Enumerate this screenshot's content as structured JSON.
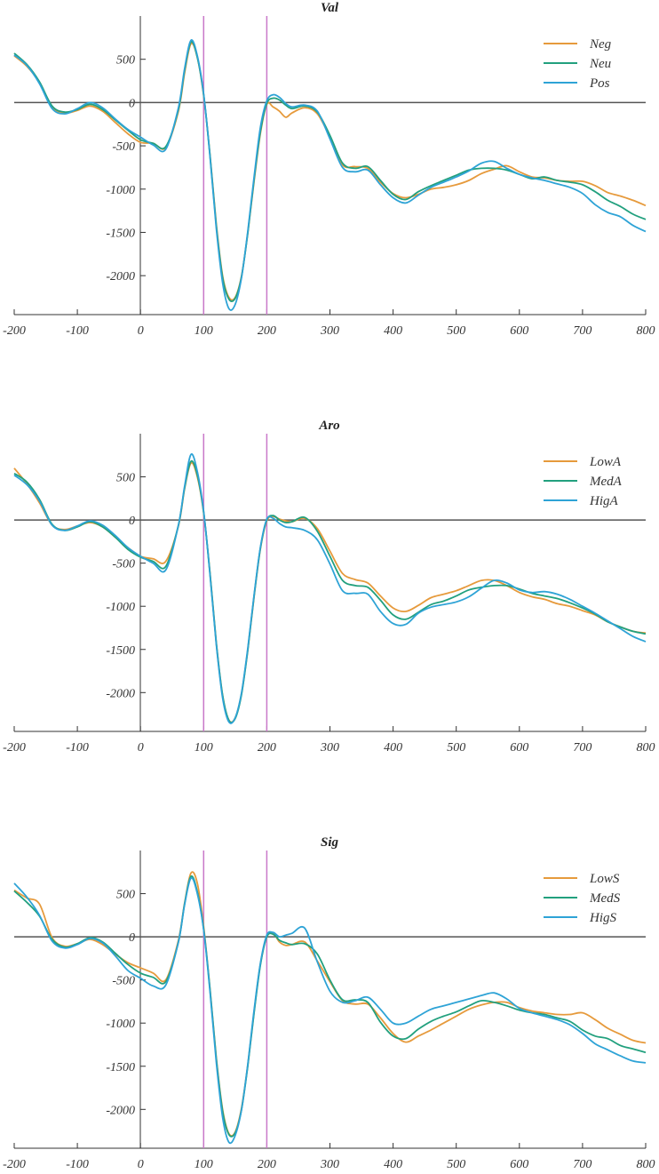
{
  "colors": {
    "orange": "#E69A3C",
    "green": "#22A07E",
    "blue": "#2EA3D6",
    "marker": "#C978C9",
    "axis": "#333333",
    "zero": "#555555"
  },
  "chart_data": [
    {
      "type": "line",
      "title": "Val",
      "xlabel": "",
      "ylabel": "",
      "xlim": [
        -200,
        800
      ],
      "ylim": [
        -2450,
        1000
      ],
      "xticks": [
        -200,
        -100,
        0,
        100,
        200,
        300,
        400,
        500,
        600,
        700,
        800
      ],
      "yticks": [
        500,
        0,
        -500,
        -1000,
        -1500,
        -2000
      ],
      "vlines": [
        100,
        200
      ],
      "hline": 0,
      "grid": false,
      "legend_position": "top-right",
      "x": [
        -200,
        -180,
        -160,
        -140,
        -120,
        -100,
        -80,
        -60,
        -40,
        -20,
        0,
        20,
        40,
        60,
        70,
        80,
        90,
        100,
        110,
        120,
        130,
        140,
        150,
        160,
        170,
        180,
        190,
        200,
        210,
        220,
        230,
        240,
        260,
        280,
        300,
        320,
        340,
        360,
        380,
        400,
        420,
        440,
        460,
        480,
        500,
        520,
        540,
        560,
        580,
        600,
        620,
        640,
        660,
        680,
        700,
        720,
        740,
        760,
        780,
        800
      ],
      "series": [
        {
          "name": "Neg",
          "color": "#E69A3C",
          "values": [
            540,
            420,
            230,
            -50,
            -120,
            -90,
            -40,
            -100,
            -230,
            -360,
            -460,
            -470,
            -520,
            -100,
            350,
            680,
            520,
            80,
            -600,
            -1400,
            -2000,
            -2250,
            -2250,
            -2000,
            -1500,
            -900,
            -350,
            -20,
            -50,
            -100,
            -170,
            -120,
            -60,
            -130,
            -400,
            -720,
            -740,
            -760,
            -920,
            -1050,
            -1100,
            -1060,
            -1000,
            -980,
            -950,
            -900,
            -820,
            -770,
            -730,
            -800,
            -860,
            -870,
            -900,
            -910,
            -910,
            -960,
            -1040,
            -1080,
            -1130,
            -1190
          ]
        },
        {
          "name": "Neu",
          "color": "#22A07E",
          "values": [
            570,
            440,
            240,
            -40,
            -110,
            -80,
            -20,
            -80,
            -200,
            -320,
            -430,
            -470,
            -510,
            -80,
            380,
            700,
            520,
            90,
            -600,
            -1420,
            -2020,
            -2270,
            -2260,
            -2010,
            -1500,
            -880,
            -330,
            -10,
            50,
            30,
            -30,
            -70,
            -40,
            -110,
            -380,
            -700,
            -760,
            -740,
            -900,
            -1060,
            -1120,
            -1030,
            -960,
            -900,
            -840,
            -780,
            -760,
            -760,
            -780,
            -830,
            -880,
            -860,
            -900,
            -920,
            -950,
            -1030,
            -1130,
            -1200,
            -1290,
            -1350
          ]
        },
        {
          "name": "Pos",
          "color": "#2EA3D6",
          "values": [
            550,
            430,
            220,
            -70,
            -130,
            -70,
            0,
            -60,
            -190,
            -310,
            -400,
            -490,
            -540,
            -60,
            400,
            720,
            540,
            100,
            -620,
            -1450,
            -2080,
            -2380,
            -2330,
            -2020,
            -1480,
            -850,
            -280,
            20,
            90,
            60,
            -10,
            -50,
            -30,
            -100,
            -420,
            -750,
            -800,
            -780,
            -950,
            -1100,
            -1160,
            -1070,
            -980,
            -920,
            -860,
            -790,
            -700,
            -680,
            -760,
            -830,
            -870,
            -900,
            -940,
            -980,
            -1050,
            -1180,
            -1270,
            -1320,
            -1420,
            -1490
          ]
        }
      ]
    },
    {
      "type": "line",
      "title": "Aro",
      "xlabel": "",
      "ylabel": "",
      "xlim": [
        -200,
        800
      ],
      "ylim": [
        -2450,
        1000
      ],
      "xticks": [
        -200,
        -100,
        0,
        100,
        200,
        300,
        400,
        500,
        600,
        700,
        800
      ],
      "yticks": [
        500,
        0,
        -500,
        -1000,
        -1500,
        -2000
      ],
      "vlines": [
        100,
        200
      ],
      "hline": 0,
      "grid": false,
      "legend_position": "top-right",
      "x": [
        -200,
        -180,
        -160,
        -140,
        -120,
        -100,
        -80,
        -60,
        -40,
        -20,
        0,
        20,
        40,
        60,
        70,
        80,
        90,
        100,
        110,
        120,
        130,
        140,
        150,
        160,
        170,
        180,
        190,
        200,
        210,
        220,
        230,
        240,
        260,
        280,
        300,
        320,
        340,
        360,
        380,
        400,
        420,
        440,
        460,
        480,
        500,
        520,
        540,
        560,
        580,
        600,
        620,
        640,
        660,
        680,
        700,
        720,
        740,
        760,
        780,
        800
      ],
      "series": [
        {
          "name": "LowA",
          "color": "#E69A3C",
          "values": [
            600,
            420,
            200,
            -60,
            -110,
            -70,
            -30,
            -80,
            -200,
            -320,
            -420,
            -450,
            -480,
            -70,
            370,
            660,
            500,
            80,
            -610,
            -1420,
            -2030,
            -2320,
            -2290,
            -2010,
            -1500,
            -880,
            -330,
            -10,
            40,
            10,
            -10,
            -20,
            20,
            -100,
            -360,
            -620,
            -690,
            -730,
            -880,
            -1020,
            -1060,
            -990,
            -900,
            -860,
            -820,
            -760,
            -700,
            -700,
            -760,
            -840,
            -890,
            -920,
            -970,
            -1000,
            -1050,
            -1100,
            -1180,
            -1240,
            -1290,
            -1310
          ]
        },
        {
          "name": "MedA",
          "color": "#22A07E",
          "values": [
            540,
            440,
            240,
            -50,
            -120,
            -80,
            -20,
            -80,
            -200,
            -340,
            -430,
            -480,
            -540,
            -60,
            380,
            680,
            520,
            90,
            -610,
            -1420,
            -2030,
            -2320,
            -2300,
            -2020,
            -1500,
            -870,
            -320,
            0,
            50,
            0,
            -30,
            -20,
            30,
            -130,
            -420,
            -700,
            -760,
            -780,
            -930,
            -1100,
            -1150,
            -1070,
            -980,
            -940,
            -880,
            -810,
            -780,
            -760,
            -760,
            -800,
            -850,
            -880,
            -910,
            -960,
            -1020,
            -1090,
            -1180,
            -1240,
            -1290,
            -1320
          ]
        },
        {
          "name": "HigA",
          "color": "#2EA3D6",
          "values": [
            520,
            410,
            220,
            -60,
            -120,
            -70,
            -10,
            -60,
            -180,
            -320,
            -420,
            -500,
            -580,
            -60,
            400,
            760,
            560,
            100,
            -630,
            -1440,
            -2060,
            -2340,
            -2290,
            -2000,
            -1480,
            -860,
            -310,
            10,
            20,
            -40,
            -80,
            -90,
            -120,
            -230,
            -510,
            -820,
            -850,
            -860,
            -1060,
            -1200,
            -1210,
            -1080,
            -1010,
            -980,
            -950,
            -890,
            -790,
            -700,
            -730,
            -810,
            -840,
            -830,
            -860,
            -920,
            -1000,
            -1080,
            -1170,
            -1260,
            -1350,
            -1410
          ]
        }
      ]
    },
    {
      "type": "line",
      "title": "Sig",
      "xlabel": "",
      "ylabel": "",
      "xlim": [
        -200,
        800
      ],
      "ylim": [
        -2450,
        1000
      ],
      "xticks": [
        -200,
        -100,
        0,
        100,
        200,
        300,
        400,
        500,
        600,
        700,
        800
      ],
      "yticks": [
        500,
        0,
        -500,
        -1000,
        -1500,
        -2000
      ],
      "vlines": [
        100,
        200
      ],
      "hline": 0,
      "grid": false,
      "legend_position": "top-right",
      "x": [
        -200,
        -180,
        -160,
        -140,
        -120,
        -100,
        -80,
        -60,
        -40,
        -20,
        0,
        20,
        40,
        60,
        70,
        80,
        90,
        100,
        110,
        120,
        130,
        140,
        150,
        160,
        170,
        180,
        190,
        200,
        210,
        220,
        230,
        240,
        260,
        280,
        300,
        320,
        340,
        360,
        380,
        400,
        420,
        440,
        460,
        480,
        500,
        520,
        540,
        560,
        580,
        600,
        620,
        640,
        660,
        680,
        700,
        720,
        740,
        760,
        780,
        800
      ],
      "series": [
        {
          "name": "LowS",
          "color": "#E69A3C",
          "values": [
            540,
            450,
            380,
            -10,
            -110,
            -80,
            -30,
            -90,
            -200,
            -300,
            -360,
            -420,
            -500,
            -40,
            400,
            740,
            620,
            120,
            -600,
            -1400,
            -2000,
            -2280,
            -2260,
            -1980,
            -1480,
            -860,
            -310,
            0,
            40,
            -60,
            -100,
            -90,
            -60,
            -280,
            -520,
            -740,
            -780,
            -780,
            -940,
            -1120,
            -1220,
            -1150,
            -1080,
            -1000,
            -920,
            -840,
            -790,
            -760,
            -760,
            -820,
            -860,
            -880,
            -900,
            -900,
            -880,
            -960,
            -1060,
            -1130,
            -1200,
            -1230
          ]
        },
        {
          "name": "MedS",
          "color": "#22A07E",
          "values": [
            530,
            400,
            240,
            -30,
            -120,
            -80,
            -10,
            -60,
            -190,
            -320,
            -420,
            -470,
            -520,
            -60,
            390,
            700,
            520,
            90,
            -600,
            -1410,
            -2020,
            -2290,
            -2270,
            -2000,
            -1490,
            -870,
            -320,
            0,
            30,
            -40,
            -70,
            -90,
            -80,
            -200,
            -500,
            -730,
            -730,
            -760,
            -990,
            -1150,
            -1180,
            -1070,
            -980,
            -920,
            -870,
            -800,
            -740,
            -760,
            -800,
            -850,
            -880,
            -900,
            -940,
            -980,
            -1080,
            -1150,
            -1180,
            -1260,
            -1300,
            -1340
          ]
        },
        {
          "name": "HigS",
          "color": "#2EA3D6",
          "values": [
            620,
            460,
            250,
            -50,
            -130,
            -90,
            -20,
            -70,
            -220,
            -390,
            -480,
            -570,
            -560,
            -60,
            380,
            680,
            500,
            80,
            -630,
            -1450,
            -2090,
            -2380,
            -2300,
            -2000,
            -1470,
            -840,
            -300,
            20,
            50,
            0,
            20,
            40,
            100,
            -290,
            -630,
            -760,
            -740,
            -700,
            -840,
            -1000,
            -1000,
            -920,
            -840,
            -800,
            -760,
            -720,
            -680,
            -650,
            -720,
            -830,
            -880,
            -920,
            -960,
            -1020,
            -1120,
            -1240,
            -1310,
            -1380,
            -1440,
            -1460
          ]
        }
      ]
    }
  ]
}
